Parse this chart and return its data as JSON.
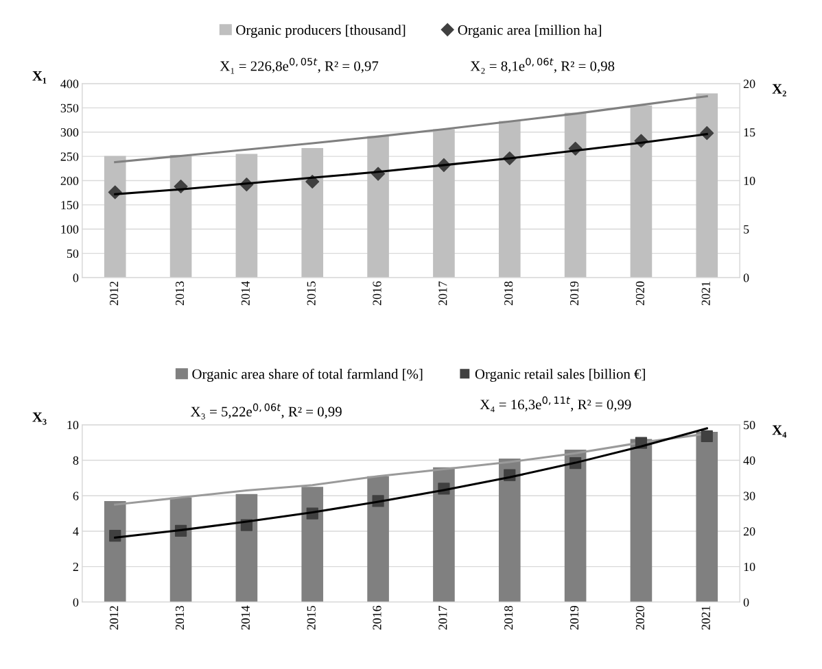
{
  "chart_data": [
    {
      "type": "bar",
      "categories": [
        "2012",
        "2013",
        "2014",
        "2015",
        "2016",
        "2017",
        "2018",
        "2019",
        "2020",
        "2021"
      ],
      "ylabel": "X₁",
      "y2label": "X₂",
      "ylim": [
        0,
        400
      ],
      "yticks": [
        0,
        50,
        100,
        150,
        200,
        250,
        300,
        350,
        400
      ],
      "y2lim": [
        0,
        20
      ],
      "y2ticks": [
        0,
        5,
        10,
        15,
        20
      ],
      "grid": "y",
      "legend": "top",
      "annotations": [
        "X₁ = 226,8e$^{0,05t}$, R² = 0,97",
        "X₂ = 8,1e$^{0,06t}$, R² = 0,98"
      ],
      "series": [
        {
          "name": "Organic producers [thousand]",
          "color": "#bfbfbf",
          "values": [
            251,
            253,
            255,
            267,
            292,
            306,
            323,
            340,
            355,
            380
          ]
        },
        {
          "name": "Organic area [million ha]",
          "type": "scatter",
          "axis": "y2",
          "marker": "diamond",
          "color": "#404040",
          "values": [
            8.8,
            9.4,
            9.6,
            9.9,
            10.7,
            11.6,
            12.3,
            13.3,
            14.1,
            14.9
          ]
        },
        {
          "type": "line",
          "color": "#808080",
          "values": [
            238,
            251,
            264,
            277,
            291,
            306,
            322,
            338,
            356,
            374
          ]
        },
        {
          "type": "line",
          "axis": "y2",
          "color": "#000000",
          "values": [
            8.6,
            9.1,
            9.7,
            10.3,
            10.9,
            11.6,
            12.3,
            13.1,
            13.9,
            14.8
          ]
        }
      ]
    },
    {
      "type": "bar",
      "categories": [
        "2012",
        "2013",
        "2014",
        "2015",
        "2016",
        "2017",
        "2018",
        "2019",
        "2020",
        "2021"
      ],
      "ylabel": "X₃",
      "y2label": "X₄",
      "ylim": [
        0,
        10
      ],
      "yticks": [
        0,
        2,
        4,
        6,
        8,
        10
      ],
      "y2lim": [
        0,
        50
      ],
      "y2ticks": [
        0,
        10,
        20,
        30,
        40,
        50
      ],
      "grid": "y",
      "legend": "top",
      "annotations": [
        "X₃ = 5,22e$^{0,06t}$, R² = 0,99",
        "X₄ = 16,3e$^{0,11t}$, R² = 0,99"
      ],
      "series": [
        {
          "name": "Organic area share of total farmland [%]",
          "color": "#808080",
          "values": [
            5.7,
            5.9,
            6.1,
            6.5,
            7.1,
            7.6,
            8.1,
            8.6,
            9.2,
            9.6
          ]
        },
        {
          "name": "Organic retail sales [billion €]",
          "type": "scatter",
          "axis": "y2",
          "marker": "square",
          "color": "#404040",
          "values": [
            18.7,
            20.1,
            21.7,
            25.0,
            28.5,
            32.0,
            35.8,
            39.2,
            44.9,
            46.8
          ]
        },
        {
          "type": "line",
          "color": "#9a9a9a",
          "values": [
            5.5,
            5.9,
            6.3,
            6.6,
            7.1,
            7.5,
            7.9,
            8.4,
            9.0,
            9.5
          ]
        },
        {
          "type": "line",
          "axis": "y2",
          "color": "#000000",
          "values": [
            18.2,
            20.3,
            22.7,
            25.3,
            28.3,
            31.6,
            35.2,
            39.3,
            43.9,
            49.0
          ]
        }
      ]
    }
  ]
}
